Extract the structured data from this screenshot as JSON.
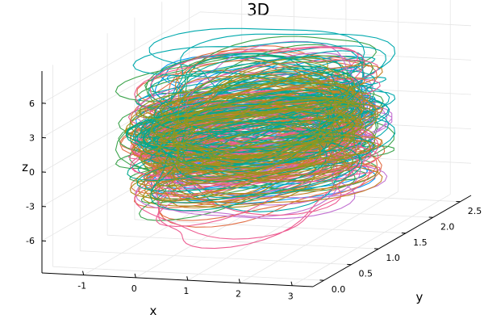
{
  "chart_data": {
    "type": "line",
    "projection": "3d",
    "title": "3D",
    "xlabel": "x",
    "ylabel": "y",
    "zlabel": "z",
    "x_ticks": [
      "-1",
      "0",
      "1",
      "2",
      "3"
    ],
    "x_tick_values": [
      -1,
      0,
      1,
      2,
      3
    ],
    "y_ticks": [
      "0.0",
      "0.5",
      "1.0",
      "1.5",
      "2.0",
      "2.5"
    ],
    "y_tick_values": [
      0.0,
      0.5,
      1.0,
      1.5,
      2.0,
      2.5
    ],
    "z_ticks": [
      "-6",
      "-3",
      "0",
      "3",
      "6"
    ],
    "z_tick_values": [
      -6,
      -3,
      0,
      3,
      6
    ],
    "xlim": [
      -1.8,
      3.4
    ],
    "ylim": [
      -0.2,
      2.7
    ],
    "zlim": [
      -8.8,
      8.8
    ],
    "grid": true,
    "legend": "none",
    "series_colors": [
      "#009af9",
      "#e26f46",
      "#3da44d",
      "#c271d2",
      "#ac8e18",
      "#00a9ad",
      "#ed5d92",
      "#c68225",
      "#00a98d",
      "#8e971e"
    ],
    "series": [
      {
        "color": "#009af9",
        "center": [
          0.8,
          1.2
        ],
        "radius": [
          1.6,
          0.9
        ],
        "z_range": [
          -5.2,
          6.0
        ],
        "turns": 22,
        "phase": 0.0
      },
      {
        "color": "#e26f46",
        "center": [
          0.9,
          1.1
        ],
        "radius": [
          1.7,
          1.0
        ],
        "z_range": [
          -4.6,
          5.4
        ],
        "turns": 22,
        "phase": 0.6
      },
      {
        "color": "#3da44d",
        "center": [
          0.7,
          1.3
        ],
        "radius": [
          1.8,
          1.0
        ],
        "z_range": [
          -5.6,
          6.8
        ],
        "turns": 22,
        "phase": 1.2
      },
      {
        "color": "#c271d2",
        "center": [
          1.0,
          1.2
        ],
        "radius": [
          1.6,
          1.0
        ],
        "z_range": [
          -5.0,
          5.0
        ],
        "turns": 22,
        "phase": 1.8
      },
      {
        "color": "#ac8e18",
        "center": [
          0.8,
          1.0
        ],
        "radius": [
          1.5,
          0.9
        ],
        "z_range": [
          -3.8,
          4.6
        ],
        "turns": 22,
        "phase": 2.4
      },
      {
        "color": "#00a9ad",
        "center": [
          0.9,
          1.3
        ],
        "radius": [
          1.7,
          1.0
        ],
        "z_range": [
          -4.4,
          7.4
        ],
        "turns": 22,
        "phase": 3.0
      },
      {
        "color": "#ed5d92",
        "center": [
          0.8,
          1.2
        ],
        "radius": [
          1.7,
          0.9
        ],
        "z_range": [
          -7.4,
          5.6
        ],
        "turns": 22,
        "phase": 3.6
      },
      {
        "color": "#c68225",
        "center": [
          1.0,
          1.1
        ],
        "radius": [
          1.6,
          1.0
        ],
        "z_range": [
          -4.8,
          5.2
        ],
        "turns": 22,
        "phase": 4.2
      },
      {
        "color": "#00a98d",
        "center": [
          0.7,
          1.2
        ],
        "radius": [
          1.6,
          0.9
        ],
        "z_range": [
          -3.8,
          4.6
        ],
        "turns": 22,
        "phase": 4.8
      },
      {
        "color": "#8e971e",
        "center": [
          0.9,
          1.2
        ],
        "radius": [
          1.5,
          0.9
        ],
        "z_range": [
          -3.6,
          4.4
        ],
        "turns": 22,
        "phase": 5.4
      }
    ]
  }
}
